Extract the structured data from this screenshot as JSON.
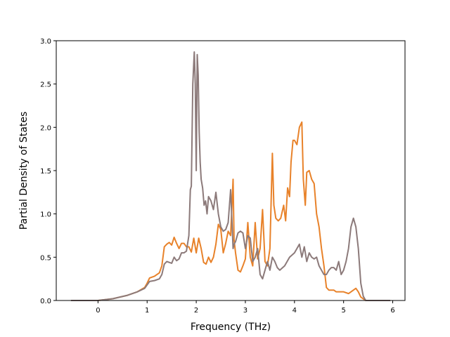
{
  "chart_data": {
    "type": "line",
    "title": "",
    "xlabel": "Frequency (THz)",
    "ylabel": "Partial Density of States",
    "xlim": [
      -0.85,
      6.25
    ],
    "ylim": [
      0,
      3.0
    ],
    "xticks": [
      0,
      1,
      2,
      3,
      4,
      5,
      6
    ],
    "xtick_labels": [
      "0",
      "1",
      "2",
      "3",
      "4",
      "5",
      "6"
    ],
    "yticks": [
      0,
      0.5,
      1.0,
      1.5,
      2.0,
      2.5,
      3.0
    ],
    "ytick_labels": [
      "0.0",
      "0.5",
      "1.0",
      "1.5",
      "2.0",
      "2.5",
      "3.0"
    ],
    "grid": false,
    "legend": "none",
    "series": [
      {
        "color": "#e8822a",
        "x": [
          -0.55,
          0.0,
          0.3,
          0.6,
          0.8,
          0.95,
          1.0,
          1.05,
          1.15,
          1.25,
          1.3,
          1.35,
          1.4,
          1.45,
          1.5,
          1.55,
          1.6,
          1.65,
          1.7,
          1.75,
          1.8,
          1.85,
          1.9,
          1.95,
          2.0,
          2.05,
          2.1,
          2.15,
          2.2,
          2.25,
          2.3,
          2.35,
          2.4,
          2.45,
          2.5,
          2.55,
          2.6,
          2.65,
          2.7,
          2.75,
          2.77,
          2.8,
          2.85,
          2.9,
          2.95,
          3.0,
          3.05,
          3.1,
          3.15,
          3.2,
          3.25,
          3.3,
          3.35,
          3.4,
          3.45,
          3.5,
          3.55,
          3.58,
          3.62,
          3.67,
          3.72,
          3.78,
          3.82,
          3.86,
          3.9,
          3.93,
          3.97,
          4.0,
          4.05,
          4.1,
          4.15,
          4.18,
          4.22,
          4.25,
          4.3,
          4.35,
          4.4,
          4.45,
          4.5,
          4.55,
          4.6,
          4.65,
          4.7,
          4.75,
          4.8,
          4.85,
          4.9,
          5.0,
          5.1,
          5.2,
          5.25,
          5.3,
          5.35,
          5.4,
          5.45,
          5.5,
          5.95
        ],
        "y": [
          0.0,
          0.0,
          0.02,
          0.06,
          0.1,
          0.15,
          0.2,
          0.26,
          0.28,
          0.32,
          0.4,
          0.62,
          0.65,
          0.67,
          0.64,
          0.73,
          0.66,
          0.6,
          0.66,
          0.66,
          0.62,
          0.62,
          0.56,
          0.72,
          0.55,
          0.72,
          0.6,
          0.44,
          0.42,
          0.5,
          0.44,
          0.5,
          0.65,
          0.88,
          0.82,
          0.55,
          0.66,
          0.8,
          0.75,
          1.4,
          0.7,
          0.55,
          0.35,
          0.33,
          0.4,
          0.48,
          0.9,
          0.5,
          0.4,
          0.9,
          0.48,
          0.6,
          1.05,
          0.45,
          0.4,
          0.6,
          1.7,
          1.1,
          0.95,
          0.92,
          0.95,
          1.1,
          0.92,
          1.3,
          1.2,
          1.6,
          1.85,
          1.85,
          1.8,
          2.0,
          2.06,
          1.4,
          1.1,
          1.48,
          1.5,
          1.4,
          1.35,
          1.0,
          0.85,
          0.6,
          0.4,
          0.15,
          0.12,
          0.12,
          0.12,
          0.1,
          0.1,
          0.1,
          0.08,
          0.12,
          0.14,
          0.1,
          0.04,
          0.02,
          0.0,
          0.0,
          0.0
        ]
      },
      {
        "color": "#8c7a7a",
        "x": [
          -0.55,
          0.0,
          0.3,
          0.6,
          0.8,
          0.95,
          1.0,
          1.05,
          1.15,
          1.25,
          1.3,
          1.35,
          1.4,
          1.5,
          1.55,
          1.6,
          1.65,
          1.7,
          1.75,
          1.8,
          1.85,
          1.88,
          1.9,
          1.93,
          1.96,
          1.98,
          2.0,
          2.02,
          2.04,
          2.06,
          2.08,
          2.1,
          2.13,
          2.16,
          2.19,
          2.22,
          2.25,
          2.3,
          2.35,
          2.4,
          2.45,
          2.5,
          2.55,
          2.6,
          2.65,
          2.7,
          2.75,
          2.77,
          2.8,
          2.85,
          2.9,
          2.95,
          3.0,
          3.05,
          3.1,
          3.15,
          3.2,
          3.25,
          3.3,
          3.35,
          3.4,
          3.45,
          3.5,
          3.55,
          3.6,
          3.65,
          3.7,
          3.8,
          3.9,
          4.0,
          4.05,
          4.1,
          4.15,
          4.2,
          4.25,
          4.3,
          4.35,
          4.4,
          4.45,
          4.5,
          4.55,
          4.6,
          4.65,
          4.7,
          4.75,
          4.8,
          4.85,
          4.9,
          4.95,
          5.0,
          5.05,
          5.1,
          5.15,
          5.2,
          5.25,
          5.3,
          5.35,
          5.4,
          5.45,
          5.5,
          5.95
        ],
        "y": [
          0.0,
          0.0,
          0.02,
          0.06,
          0.1,
          0.14,
          0.18,
          0.22,
          0.23,
          0.25,
          0.3,
          0.42,
          0.45,
          0.43,
          0.5,
          0.46,
          0.48,
          0.55,
          0.55,
          0.57,
          0.75,
          1.28,
          1.32,
          2.5,
          2.87,
          2.5,
          1.5,
          2.84,
          2.6,
          1.95,
          1.6,
          1.4,
          1.3,
          1.1,
          1.15,
          1.0,
          1.2,
          1.15,
          1.05,
          1.25,
          1.0,
          0.85,
          0.8,
          0.82,
          0.9,
          1.28,
          0.6,
          0.65,
          0.68,
          0.78,
          0.8,
          0.78,
          0.6,
          0.75,
          0.72,
          0.45,
          0.5,
          0.6,
          0.3,
          0.25,
          0.35,
          0.45,
          0.35,
          0.5,
          0.45,
          0.38,
          0.35,
          0.4,
          0.5,
          0.55,
          0.6,
          0.65,
          0.5,
          0.62,
          0.45,
          0.55,
          0.5,
          0.48,
          0.5,
          0.4,
          0.35,
          0.3,
          0.3,
          0.35,
          0.38,
          0.38,
          0.35,
          0.45,
          0.3,
          0.35,
          0.45,
          0.6,
          0.85,
          0.95,
          0.85,
          0.6,
          0.2,
          0.05,
          0.0,
          0.0,
          0.0
        ]
      }
    ]
  }
}
